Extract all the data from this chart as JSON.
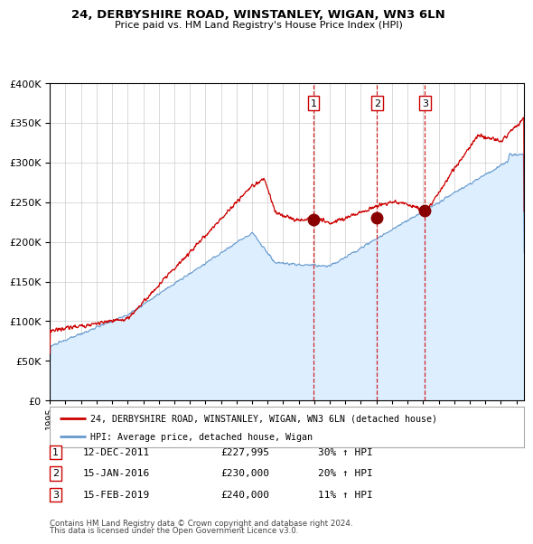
{
  "title": "24, DERBYSHIRE ROAD, WINSTANLEY, WIGAN, WN3 6LN",
  "subtitle": "Price paid vs. HM Land Registry's House Price Index (HPI)",
  "legend_line1": "24, DERBYSHIRE ROAD, WINSTANLEY, WIGAN, WN3 6LN (detached house)",
  "legend_line2": "HPI: Average price, detached house, Wigan",
  "footnote1": "Contains HM Land Registry data © Crown copyright and database right 2024.",
  "footnote2": "This data is licensed under the Open Government Licence v3.0.",
  "sale_labels": [
    {
      "num": "1",
      "date": "12-DEC-2011",
      "price": "£227,995",
      "hpi": "30% ↑ HPI"
    },
    {
      "num": "2",
      "date": "15-JAN-2016",
      "price": "£230,000",
      "hpi": "20% ↑ HPI"
    },
    {
      "num": "3",
      "date": "15-FEB-2019",
      "price": "£240,000",
      "hpi": "11% ↑ HPI"
    }
  ],
  "sale_dates_decimal": [
    2011.95,
    2016.04,
    2019.12
  ],
  "sale_prices": [
    227995,
    230000,
    240000
  ],
  "vline_color": "#cc0000",
  "dot_color": "#880000",
  "red_line_color": "#cc0000",
  "blue_line_color": "#6699cc",
  "blue_fill_color": "#ddeeff",
  "grid_color": "#cccccc",
  "background_color": "#ffffff",
  "ylim": [
    0,
    400000
  ],
  "xlim_start": 1995,
  "xlim_end": 2025.5,
  "ylabel_ticks": [
    0,
    50000,
    100000,
    150000,
    200000,
    250000,
    300000,
    350000,
    400000
  ]
}
